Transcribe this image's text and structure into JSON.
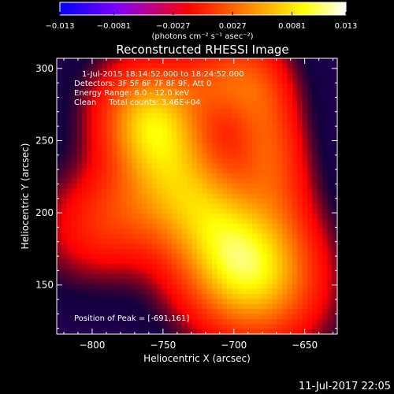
{
  "chart_data": {
    "type": "heatmap",
    "title": "Reconstructed RHESSI Image",
    "xlabel": "Heliocentric X (arcsec)",
    "ylabel": "Heliocentric Y (arcsec)",
    "xlim": [
      -825,
      -627
    ],
    "ylim": [
      116,
      307
    ],
    "x_ticks": [
      -800,
      -750,
      -700,
      -650
    ],
    "y_ticks": [
      150,
      200,
      250,
      300
    ],
    "colorbar": {
      "range": [
        -0.013,
        0.013
      ],
      "ticks": [
        -0.013,
        -0.0081,
        -0.0027,
        0.0027,
        0.0081,
        0.013
      ],
      "tick_labels": [
        "−0.013",
        "−0.0081",
        "−0.0027",
        "0.0027",
        "0.0081",
        "0.013"
      ],
      "unit_label": "(photons cm⁻² s⁻¹ asec⁻²)",
      "colors": [
        "#0000ff",
        "#8000ff",
        "#ff0000",
        "#ff8000",
        "#ffff00",
        "#ffffff"
      ]
    },
    "annotations": [
      "1-Jul-2015 18:14:52.000 to 18:24:52.000",
      "Detectors: 3F 5F 6F 7F 8F 9F, Att 0",
      "Energy Range: 6.0 - 12.0 keV",
      "Clean     Total counts: 3.46E+04"
    ],
    "peak": {
      "label": "Position of Peak = [-691,161]",
      "x": -691,
      "y": 161,
      "value": 0.013
    },
    "sources": [
      {
        "x": -691,
        "y": 161,
        "amplitude": 0.0125,
        "sigma_x": 28,
        "sigma_y": 32,
        "rotation_deg": 45
      },
      {
        "x": -757,
        "y": 262,
        "amplitude": 0.0105,
        "sigma_x": 22,
        "sigma_y": 26,
        "rotation_deg": 30
      },
      {
        "x": -730,
        "y": 210,
        "amplitude": 0.008,
        "sigma_x": 35,
        "sigma_y": 25,
        "rotation_deg": -40
      },
      {
        "x": -676,
        "y": 250,
        "amplitude": 0.0055,
        "sigma_x": 16,
        "sigma_y": 40,
        "rotation_deg": 10
      },
      {
        "x": -787,
        "y": 195,
        "amplitude": 0.004,
        "sigma_x": 30,
        "sigma_y": 24,
        "rotation_deg": 20
      },
      {
        "x": -708,
        "y": 290,
        "amplitude": 0.0048,
        "sigma_x": 24,
        "sigma_y": 18,
        "rotation_deg": 0
      }
    ],
    "background": -0.0035
  },
  "footer": {
    "date": "11-Jul-2017 22:05"
  }
}
